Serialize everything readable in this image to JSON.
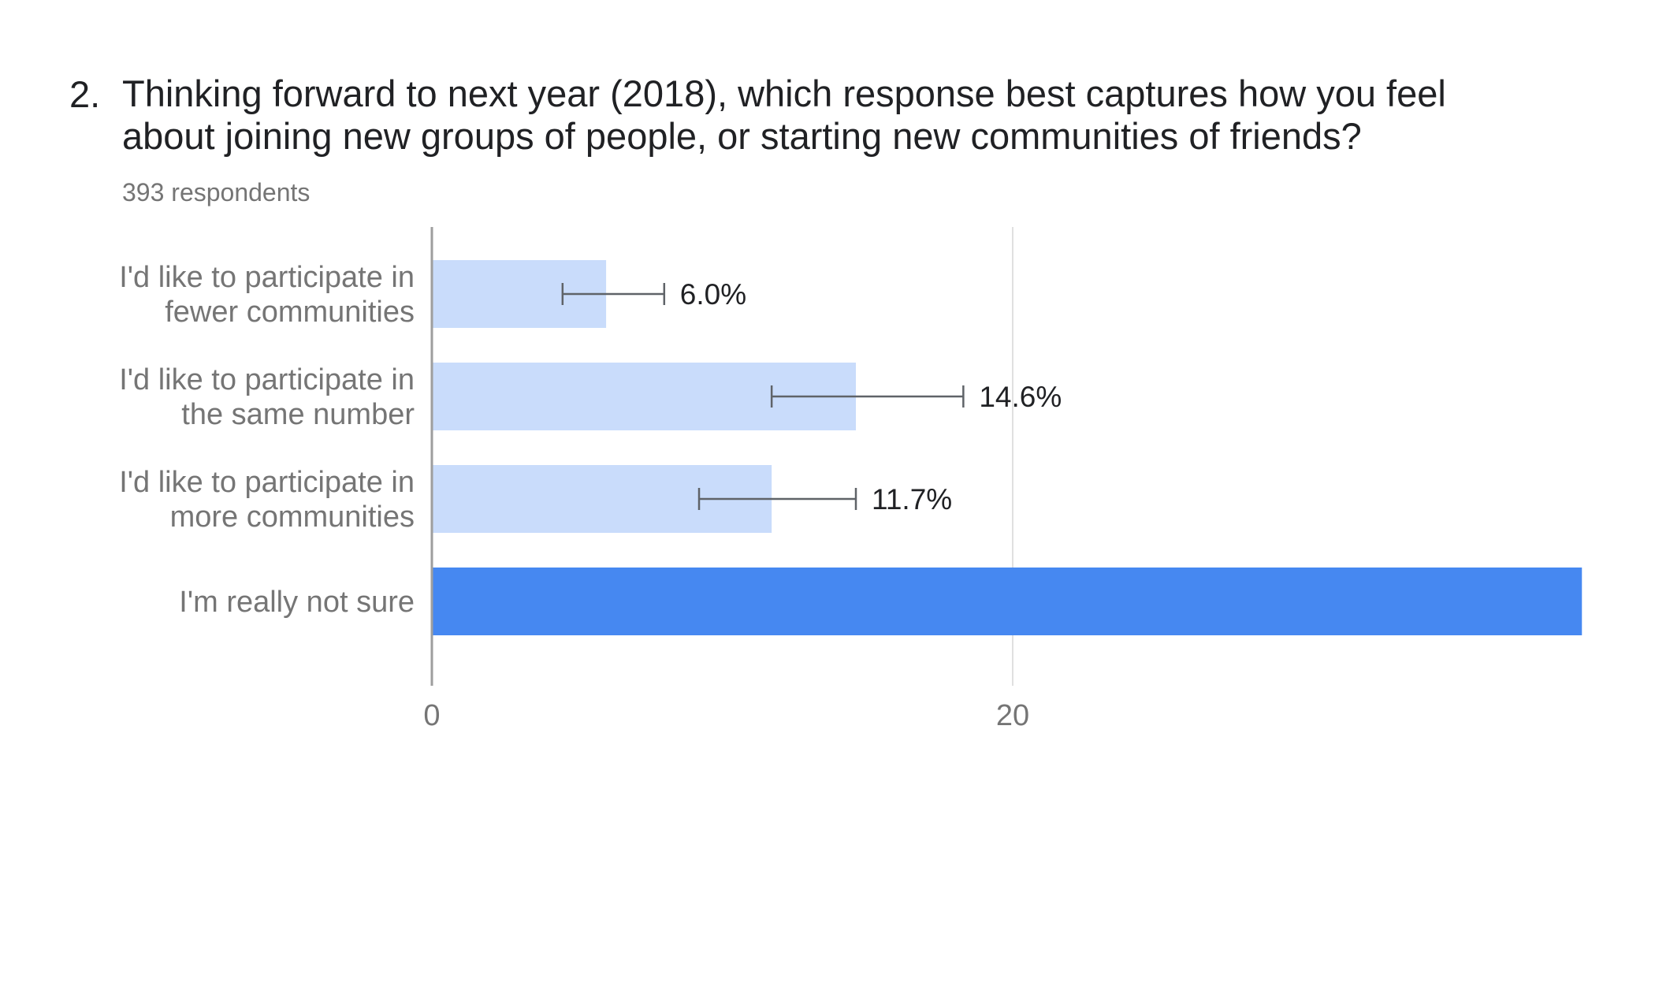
{
  "question": {
    "number": "2.",
    "title": "Thinking forward to next year (2018), which response best captures how you feel about joining new groups of people, or starting new communities of friends?",
    "respondents": "393 respondents"
  },
  "colors": {
    "bar": "#c9dcfb",
    "bar_highlight": "#4688f1",
    "grid": "#e0e0e0",
    "axis": "#9e9e9e",
    "error_bar": "#5f6368"
  },
  "chart_data": {
    "type": "bar",
    "orientation": "horizontal",
    "categories": [
      [
        "I'd like to participate in",
        "fewer communities"
      ],
      [
        "I'd like to participate in",
        "the same number"
      ],
      [
        "I'd like to participate in",
        "more communities"
      ],
      [
        "I'm really not sure"
      ]
    ],
    "values": [
      6.0,
      14.6,
      11.7,
      39.6
    ],
    "highlight_index": 3,
    "error_bars": [
      [
        4.5,
        8.0
      ],
      [
        11.7,
        18.3
      ],
      [
        9.2,
        14.6
      ],
      null
    ],
    "data_labels": [
      "6.0%",
      "14.6%",
      "11.7%",
      ""
    ],
    "xlim": [
      0,
      40
    ],
    "xticks": [
      0,
      20
    ],
    "xtick_labels": [
      "0",
      "20"
    ],
    "grid": true
  }
}
